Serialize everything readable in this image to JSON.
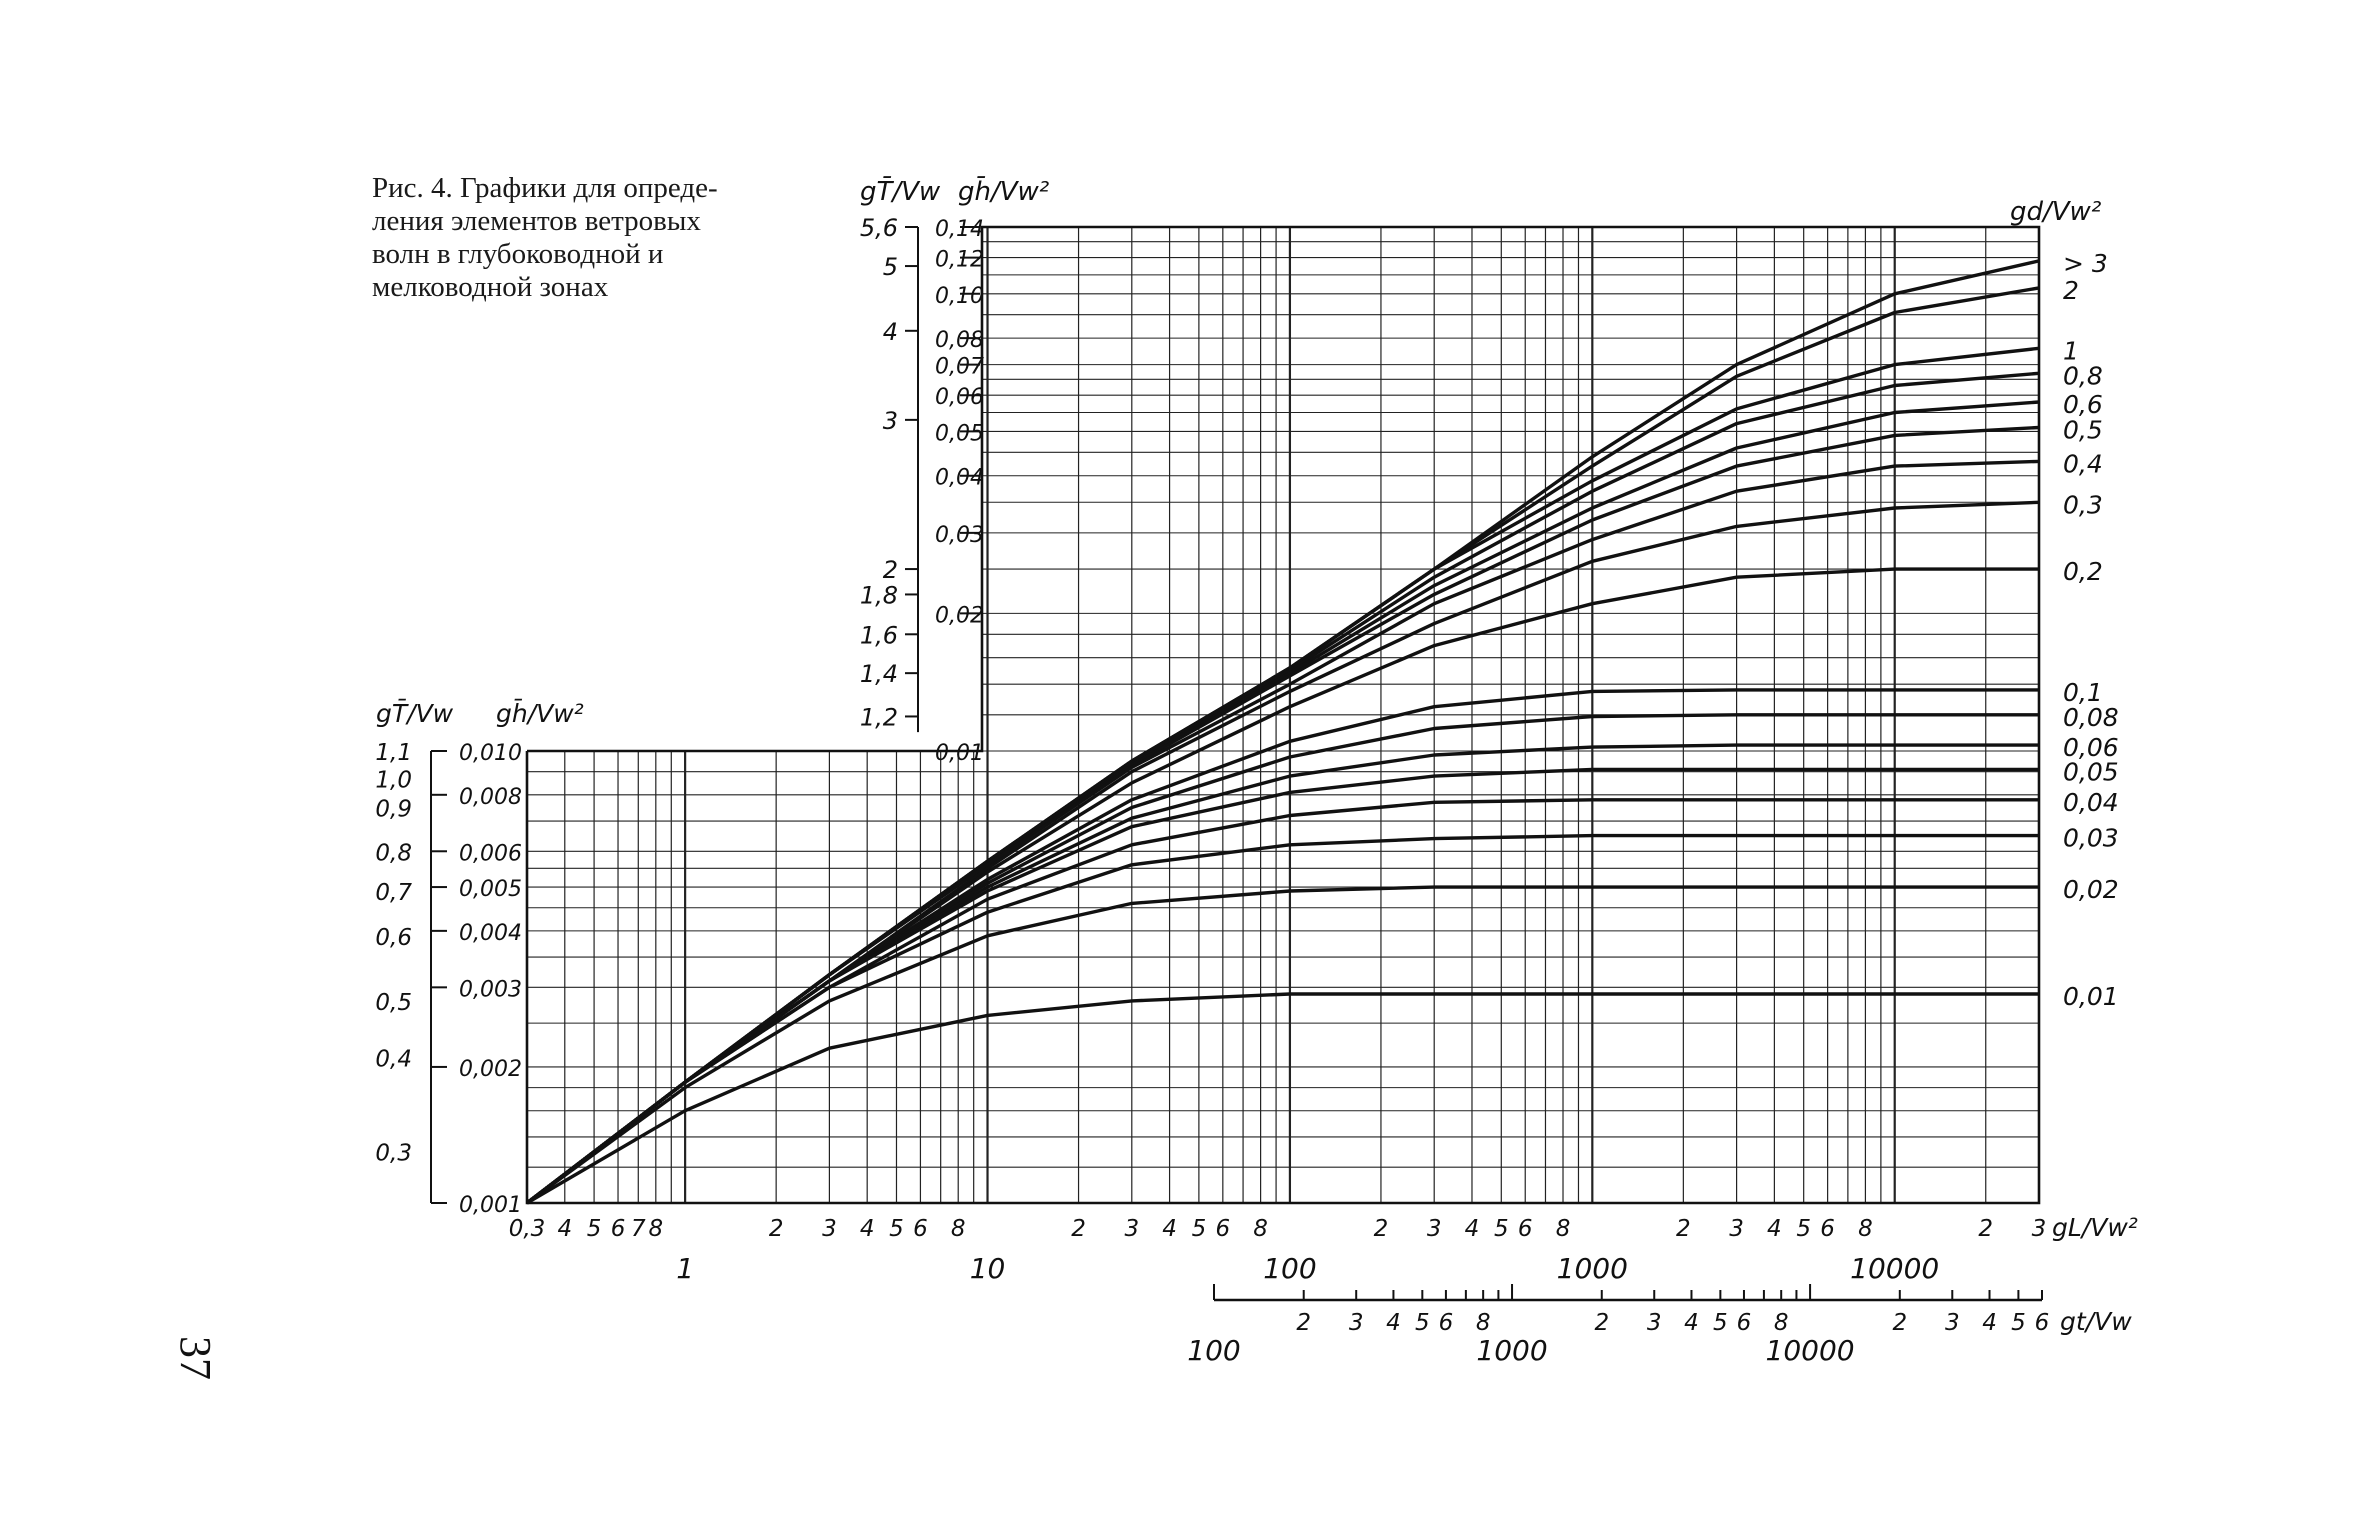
{
  "caption": {
    "lines": [
      "Рис. 4. Графики для опреде-",
      "ления элементов ветровых",
      "волн в глубоководной и",
      "мелководной зонах"
    ]
  },
  "page_number": "37",
  "chart_data": {
    "type": "line",
    "axes_labels": {
      "upper_left_T": "gT̄/Vw",
      "upper_left_h": "gh̄/Vw²",
      "lower_left_T": "gT̄/Vw",
      "lower_left_h": "gh̄/Vw²",
      "right": "gd/Vw²",
      "bottom_L": "gL/Vw²",
      "bottom_t": "gt/Vw"
    },
    "grid": true,
    "scale": "log-log",
    "x_fetch": {
      "range": [
        0.3,
        30000
      ],
      "tick_labels": [
        "0,3",
        "4",
        "5",
        "6",
        "7",
        "8",
        "2",
        "3",
        "4",
        "5",
        "6",
        "8",
        "2",
        "3",
        "4",
        "5",
        "6",
        "8",
        "2",
        "3",
        "4",
        "5",
        "6",
        "8",
        "2",
        "3",
        "4",
        "5",
        "6",
        "8",
        "2",
        "3"
      ],
      "decade_labels": [
        "1",
        "10",
        "100",
        "1000",
        "10000"
      ]
    },
    "x_duration": {
      "range": [
        100,
        60000
      ],
      "tick_labels": [
        "2",
        "3",
        "4",
        "5",
        "6",
        "8",
        "2",
        "3",
        "4",
        "5",
        "6",
        "8",
        "2",
        "3",
        "4",
        "5",
        "6"
      ],
      "decade_labels": [
        "100",
        "1000",
        "10000"
      ]
    },
    "y_h_upper": {
      "range": [
        0.01,
        0.14
      ],
      "tick_labels": [
        "0,14",
        "0,12",
        "0,10",
        "0,08",
        "0,07",
        "0,06",
        "0,05",
        "0,04",
        "0,03",
        "0,02",
        "0,01"
      ]
    },
    "y_T_upper": {
      "tick_labels": [
        "5,6",
        "5",
        "4",
        "3",
        "2",
        "1,8",
        "1,6",
        "1,4",
        "1,2"
      ]
    },
    "y_h_lower": {
      "range": [
        0.001,
        0.01
      ],
      "tick_labels": [
        "0,010",
        "0,008",
        "0,006",
        "0,005",
        "0,004",
        "0,003",
        "0,002",
        "0,001"
      ]
    },
    "y_T_lower": {
      "tick_labels": [
        "1,1",
        "1,0",
        "0,9",
        "0,8",
        "0,7",
        "0,6",
        "0,5",
        "0,4",
        "0,3"
      ]
    },
    "depth_labels": [
      "> 3",
      "2",
      "1",
      "0,8",
      "0,6",
      "0,5",
      "0,4",
      "0,3",
      "0,2",
      "0,1",
      "0,08",
      "0,06",
      "0,05",
      "0,04",
      "0,03",
      "0,02",
      "0,01"
    ],
    "series": [
      {
        "name": "> 3",
        "x": [
          0.3,
          1,
          3,
          10,
          30,
          100,
          300,
          1000,
          3000,
          10000,
          30000
        ],
        "y": [
          0.001,
          0.00185,
          0.0032,
          0.0057,
          0.0095,
          0.0152,
          0.025,
          0.044,
          0.07,
          0.1,
          0.118
        ]
      },
      {
        "name": "2",
        "x": [
          0.3,
          1,
          3,
          10,
          30,
          100,
          300,
          1000,
          3000,
          10000,
          30000
        ],
        "y": [
          0.001,
          0.00185,
          0.0032,
          0.0057,
          0.0095,
          0.0152,
          0.025,
          0.042,
          0.066,
          0.091,
          0.103
        ]
      },
      {
        "name": "1",
        "x": [
          0.3,
          1,
          3,
          10,
          30,
          100,
          300,
          1000,
          3000,
          10000,
          30000
        ],
        "y": [
          0.001,
          0.00185,
          0.0032,
          0.0057,
          0.0095,
          0.0152,
          0.025,
          0.039,
          0.056,
          0.07,
          0.076
        ]
      },
      {
        "name": "0,8",
        "x": [
          0.3,
          1,
          3,
          10,
          30,
          100,
          300,
          1000,
          3000,
          10000,
          30000
        ],
        "y": [
          0.001,
          0.00185,
          0.0032,
          0.0057,
          0.0095,
          0.015,
          0.024,
          0.037,
          0.052,
          0.063,
          0.067
        ]
      },
      {
        "name": "0,6",
        "x": [
          0.3,
          1,
          3,
          10,
          30,
          100,
          300,
          1000,
          3000,
          10000,
          30000
        ],
        "y": [
          0.001,
          0.00185,
          0.0032,
          0.0057,
          0.0094,
          0.0148,
          0.023,
          0.034,
          0.046,
          0.055,
          0.058
        ]
      },
      {
        "name": "0,5",
        "x": [
          0.3,
          1,
          3,
          10,
          30,
          100,
          300,
          1000,
          3000,
          10000,
          30000
        ],
        "y": [
          0.001,
          0.00185,
          0.0032,
          0.0056,
          0.0093,
          0.0146,
          0.022,
          0.032,
          0.042,
          0.049,
          0.051
        ]
      },
      {
        "name": "0,4",
        "x": [
          0.3,
          1,
          3,
          10,
          30,
          100,
          300,
          1000,
          3000,
          10000,
          30000
        ],
        "y": [
          0.001,
          0.00185,
          0.0032,
          0.0056,
          0.0092,
          0.014,
          0.021,
          0.029,
          0.037,
          0.042,
          0.043
        ]
      },
      {
        "name": "0,3",
        "x": [
          0.3,
          1,
          3,
          10,
          30,
          100,
          300,
          1000,
          3000,
          10000,
          30000
        ],
        "y": [
          0.001,
          0.00185,
          0.0031,
          0.0055,
          0.009,
          0.0135,
          0.019,
          0.026,
          0.031,
          0.034,
          0.035
        ]
      },
      {
        "name": "0,2",
        "x": [
          0.3,
          1,
          3,
          10,
          30,
          100,
          300,
          1000,
          3000,
          10000,
          30000
        ],
        "y": [
          0.001,
          0.00185,
          0.0031,
          0.0054,
          0.0085,
          0.0125,
          0.017,
          0.021,
          0.024,
          0.025,
          0.025
        ]
      },
      {
        "name": "0,1",
        "x": [
          0.3,
          1,
          3,
          10,
          30,
          100,
          300,
          1000,
          3000,
          10000,
          30000
        ],
        "y": [
          0.001,
          0.00185,
          0.0031,
          0.0052,
          0.0078,
          0.0105,
          0.0125,
          0.0135,
          0.0136,
          0.0136,
          0.0136
        ]
      },
      {
        "name": "0,08",
        "x": [
          0.3,
          1,
          3,
          10,
          30,
          100,
          300,
          1000,
          3000,
          10000,
          30000
        ],
        "y": [
          0.001,
          0.00185,
          0.0031,
          0.0051,
          0.0075,
          0.0097,
          0.0112,
          0.0119,
          0.012,
          0.012,
          0.012
        ]
      },
      {
        "name": "0,06",
        "x": [
          0.3,
          1,
          3,
          10,
          30,
          100,
          300,
          1000,
          3000,
          10000,
          30000
        ],
        "y": [
          0.001,
          0.00185,
          0.0031,
          0.005,
          0.0071,
          0.0088,
          0.0098,
          0.0102,
          0.0103,
          0.0103,
          0.0103
        ]
      },
      {
        "name": "0,05",
        "x": [
          0.3,
          1,
          3,
          10,
          30,
          100,
          300,
          1000,
          3000,
          10000,
          30000
        ],
        "y": [
          0.001,
          0.00185,
          0.0031,
          0.0049,
          0.0068,
          0.0081,
          0.0088,
          0.0091,
          0.0091,
          0.0091,
          0.0091
        ]
      },
      {
        "name": "0,04",
        "x": [
          0.3,
          1,
          3,
          10,
          30,
          100,
          300,
          1000,
          3000,
          10000,
          30000
        ],
        "y": [
          0.001,
          0.00185,
          0.003,
          0.0047,
          0.0062,
          0.0072,
          0.0077,
          0.0078,
          0.0078,
          0.0078,
          0.0078
        ]
      },
      {
        "name": "0,03",
        "x": [
          0.3,
          1,
          3,
          10,
          30,
          100,
          300,
          1000,
          3000,
          10000,
          30000
        ],
        "y": [
          0.001,
          0.00185,
          0.003,
          0.0044,
          0.0056,
          0.0062,
          0.0064,
          0.0065,
          0.0065,
          0.0065,
          0.0065
        ]
      },
      {
        "name": "0,02",
        "x": [
          0.3,
          1,
          3,
          10,
          30,
          100,
          300,
          1000,
          3000,
          10000,
          30000
        ],
        "y": [
          0.001,
          0.0018,
          0.0028,
          0.0039,
          0.0046,
          0.0049,
          0.005,
          0.005,
          0.005,
          0.005,
          0.005
        ]
      },
      {
        "name": "0,01",
        "x": [
          0.3,
          1,
          3,
          10,
          30,
          100,
          300,
          1000,
          3000,
          10000,
          30000
        ],
        "y": [
          0.001,
          0.0016,
          0.0022,
          0.0026,
          0.0028,
          0.0029,
          0.0029,
          0.0029,
          0.0029,
          0.0029,
          0.0029
        ]
      }
    ]
  }
}
